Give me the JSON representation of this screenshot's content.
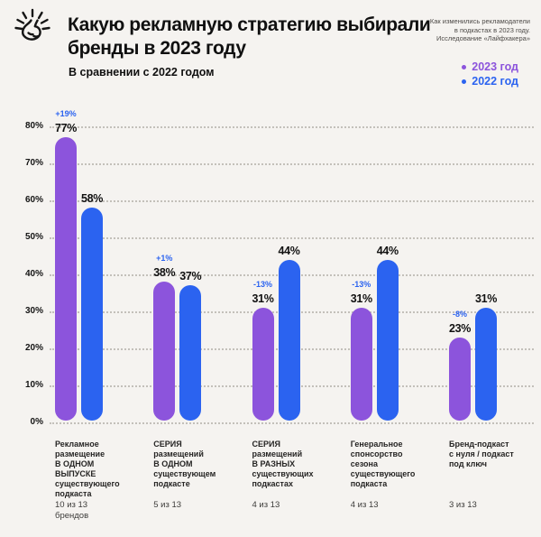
{
  "header": {
    "title": "Какую рекламную стратегию выбирали\nбренды в 2023 году",
    "subtitle": "В сравнении с 2022 годом",
    "note": "Как изменились рекламодатели\nв подкастах в 2023 году.\nИсследование «Лайфхакера»"
  },
  "legend": [
    {
      "label": "2023 год",
      "color": "#8c54dc"
    },
    {
      "label": "2022 год",
      "color": "#2b63f0"
    }
  ],
  "colors": {
    "background": "#f5f3f0",
    "grid_dots": "#c3c0ba",
    "value_text": "#111111",
    "purple_2023": "#8c54dc",
    "blue_2022": "#2b63f0"
  },
  "chart_data": {
    "type": "bar",
    "title": "Какую рекламную стратегию выбирали бренды в 2023 году",
    "subtitle": "В сравнении с 2022 годом",
    "xlabel": "",
    "ylabel": "",
    "ylim": [
      0,
      80
    ],
    "ytick_step": 10,
    "ytick_suffix": "%",
    "grid": "horizontal-dotted",
    "legend_position": "top-right",
    "series": [
      {
        "name": "2023 год",
        "color": "#8c54dc",
        "values": [
          77,
          38,
          31,
          31,
          23
        ]
      },
      {
        "name": "2022 год",
        "color": "#2b63f0",
        "values": [
          58,
          37,
          44,
          44,
          31
        ]
      }
    ],
    "change_labels": [
      "+19%",
      "+1%",
      "-13%",
      "-13%",
      "-8%"
    ],
    "change_label_color": "#2b63f0",
    "categories": [
      {
        "label": "Рекламное\nразмещение\nВ ОДНОМ\nВЫПУСКЕ\nсуществующего\nподкаста",
        "count": "10 из 13\nбрендов"
      },
      {
        "label": "СЕРИЯ\nразмещений\nВ ОДНОМ\nсуществующем\nподкасте",
        "count": "5 из 13"
      },
      {
        "label": "СЕРИЯ\nразмещений\nВ РАЗНЫХ\nсуществующих\nподкастах",
        "count": "4 из 13"
      },
      {
        "label": "Генеральное\nспонсорство\nсезона\nсуществующего\nподкаста",
        "count": "4 из 13"
      },
      {
        "label": "Бренд-подкаст\nс нуля / подкаст\nпод ключ",
        "count": "3 из 13"
      }
    ]
  }
}
